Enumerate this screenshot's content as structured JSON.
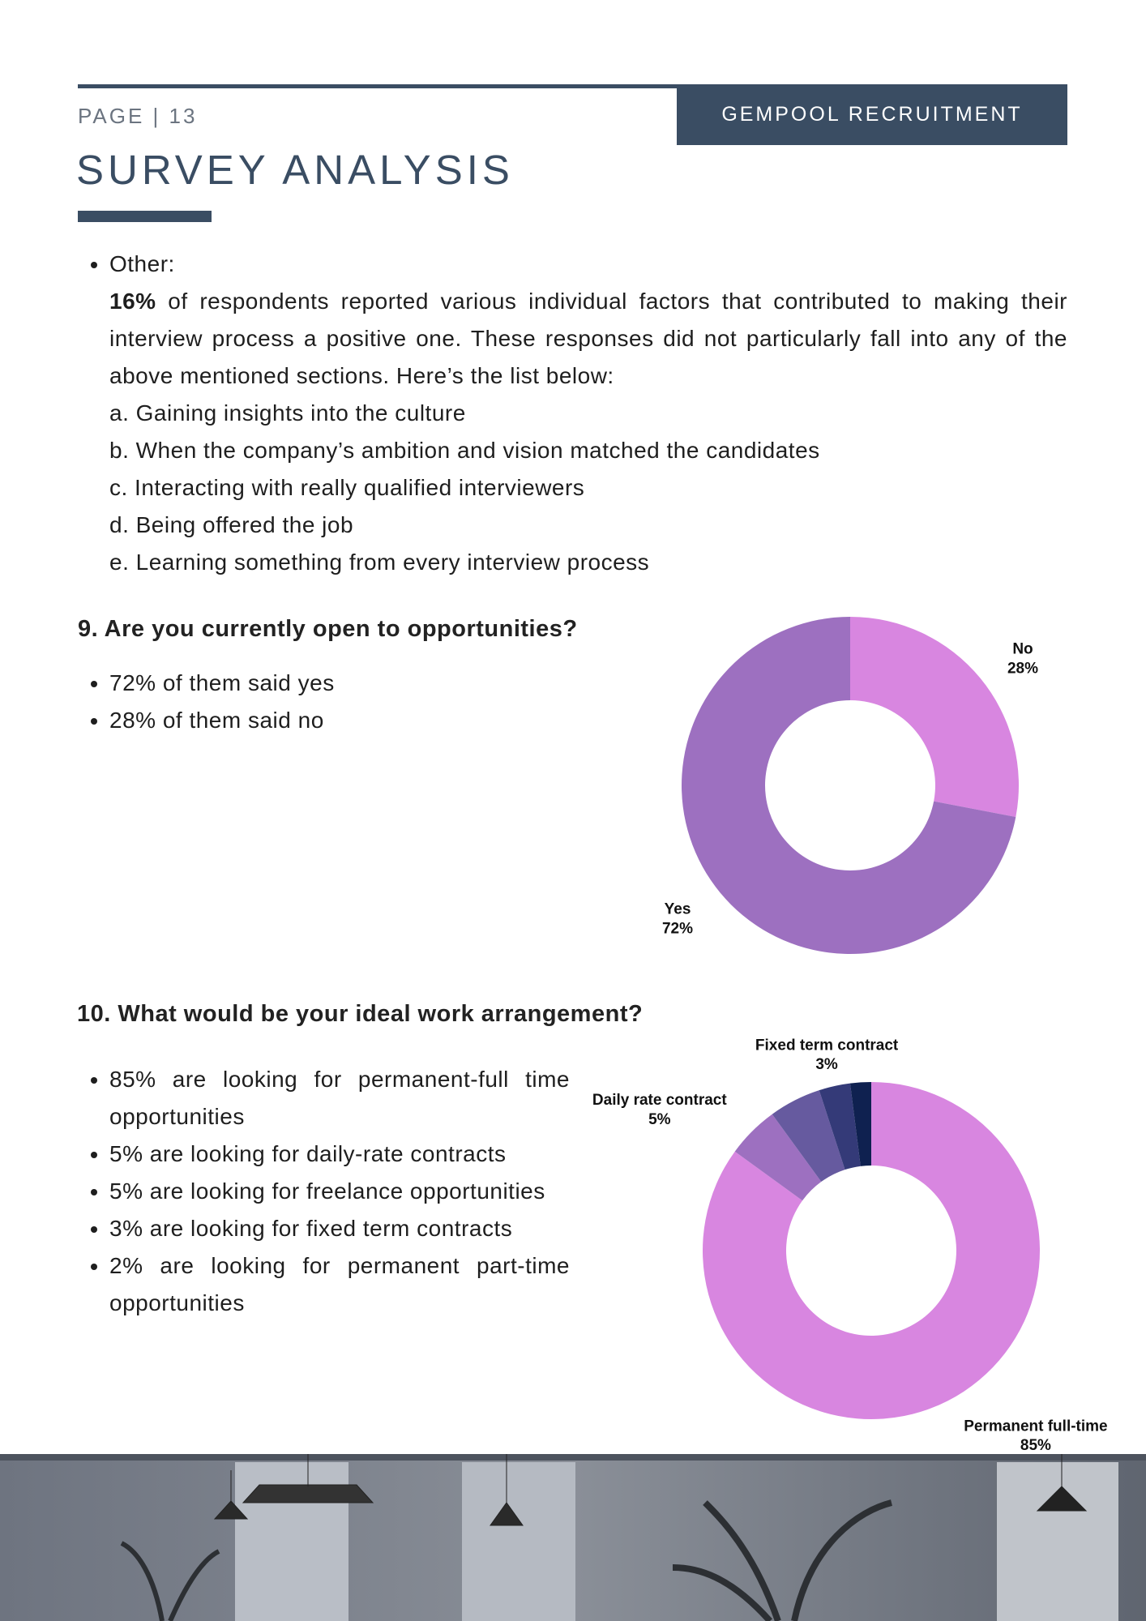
{
  "header": {
    "page": "PAGE | 13",
    "brand": "GEMPOOL RECRUITMENT",
    "title": "SURVEY ANALYSIS"
  },
  "other": {
    "label": "Other:",
    "bold": "16%",
    "text": "of respondents reported various individual factors that contributed to making their interview process a positive one. These responses did not particularly fall into any of the above mentioned sections. Here’s the list below:",
    "items": [
      "a. Gaining insights into the culture",
      "b. When the company’s ambition and vision matched the candidates",
      "c. Interacting with really qualified interviewers",
      "d. Being offered the job",
      "e. Learning something from every interview process"
    ]
  },
  "q9": {
    "heading": "9. Are you currently open to opportunities?",
    "bullets": [
      "72% of them said yes",
      "28% of them said no"
    ]
  },
  "q10": {
    "heading": "10. What would be your ideal work arrangement?",
    "bullets": [
      "85% are looking for permanent-full time opportunities",
      "5% are looking for daily-rate contracts",
      "5% are looking for freelance opportunities",
      "3% are looking for fixed term contracts",
      "2% are looking for permanent part-time opportunities"
    ]
  },
  "chart_data": [
    {
      "type": "pie",
      "donut": true,
      "categories": [
        "No",
        "Yes"
      ],
      "values": [
        28,
        72
      ],
      "value_labels": [
        "28%",
        "72%"
      ],
      "colors": [
        "#d886e0",
        "#9d70c0"
      ]
    },
    {
      "type": "pie",
      "donut": true,
      "categories": [
        "Permanent full-time",
        "Daily rate contract",
        null,
        "Fixed term contract",
        null
      ],
      "values": [
        85,
        5,
        5,
        3,
        2
      ],
      "value_labels": [
        "85%",
        "5%",
        null,
        "3%",
        null
      ],
      "colors": [
        "#d886e0",
        "#9d70c0",
        "#665a9f",
        "#343a78",
        "#0f2150"
      ]
    }
  ]
}
